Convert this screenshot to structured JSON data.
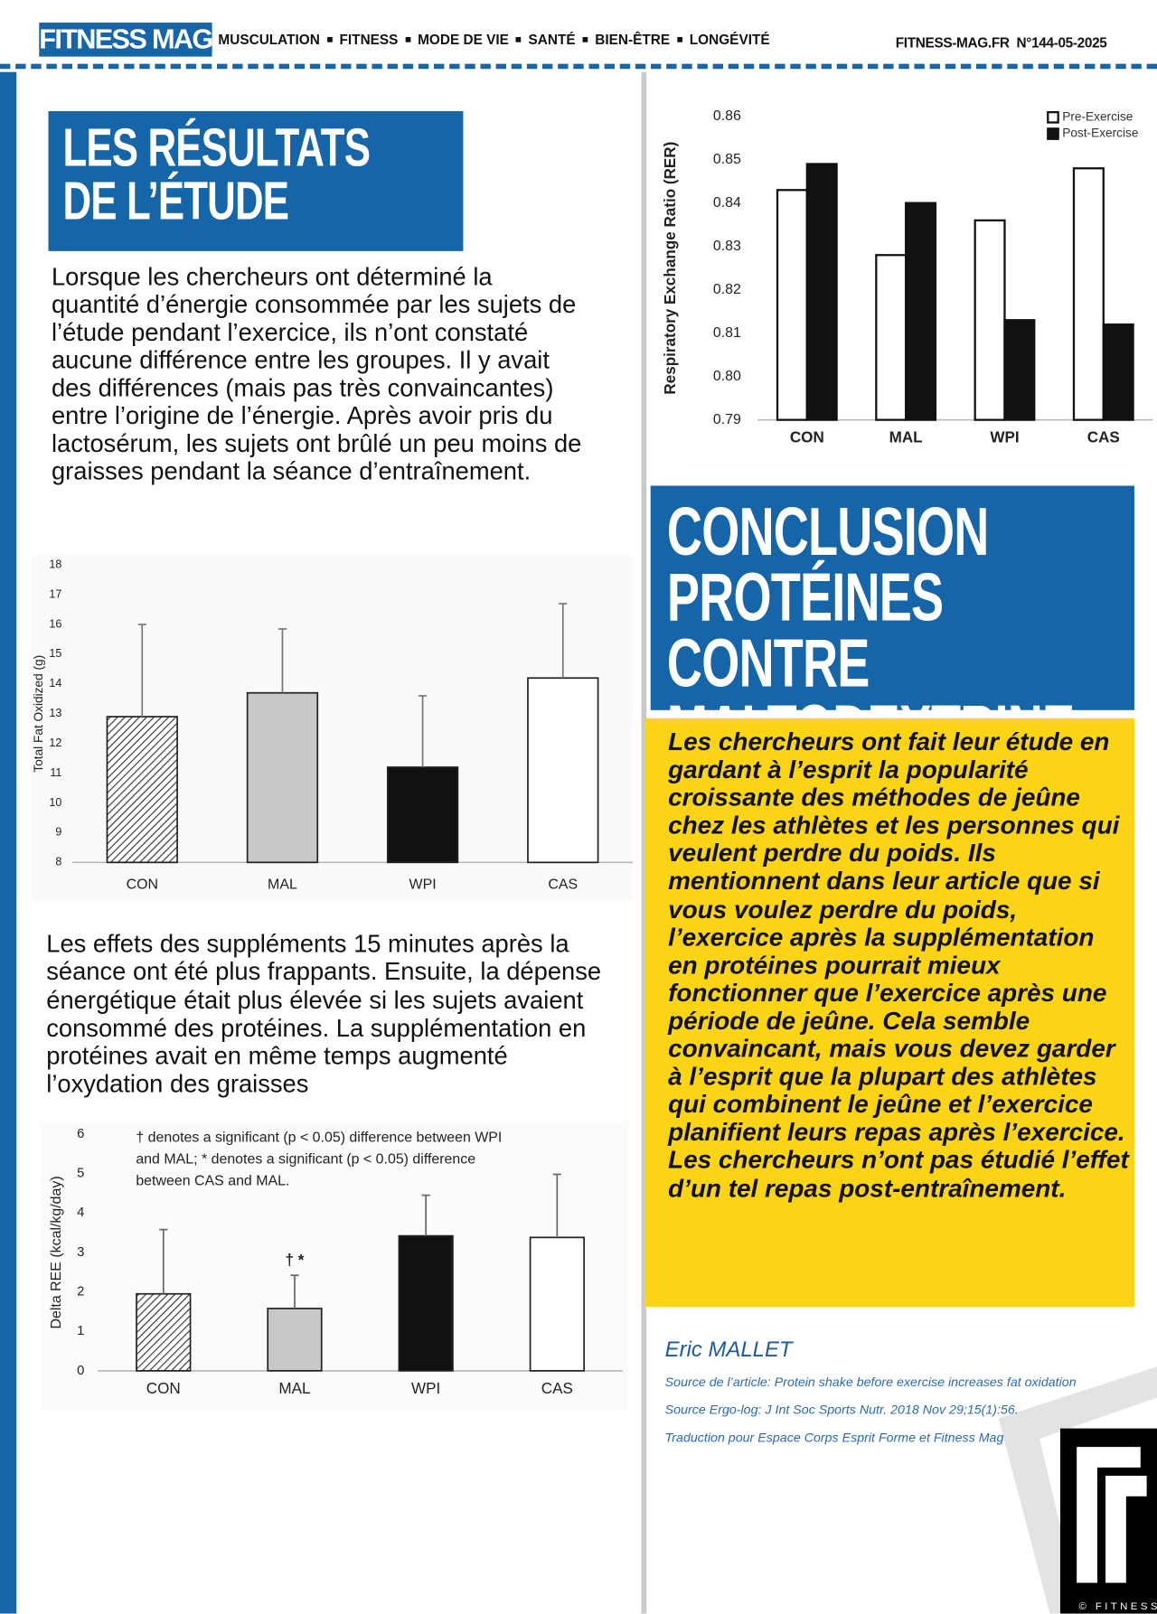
{
  "header": {
    "logo": "FITNESS MAG",
    "nav": [
      "MUSCULATION",
      "FITNESS",
      "MODE DE VIE",
      "SANTÉ",
      "BIEN-ÊTRE",
      "LONGÉVITÉ"
    ],
    "site": "FITNESS-MAG.FR",
    "issue": "N°144-05-2025"
  },
  "article": {
    "title": "LES RÉSULTATS DE L’ÉTUDE",
    "paragraphs": [
      "Lorsque les chercheurs ont déterminé la quantité d’énergie consommée par les sujets de l’étude pendant l’exercice, ils n’ont constaté aucune différence entre les groupes. Il y avait des différences (mais pas très convaincantes) entre l’origine de l’énergie. Après avoir pris du lactosérum, les sujets ont brûlé un peu moins de graisses pendant la séance d’entraînement.",
      "Les effets des suppléments 15 minutes après la séance ont été plus frappants. Ensuite, la dépense énergétique était plus élevée si les sujets avaient consommé des protéines. La supplémentation en protéines avait en même temps augmenté l’oxydation des graisses"
    ],
    "conclusion_title": "CONCLUSION PROTÉINES CONTRE MALTODEXTRINE",
    "conclusion_text": "Les chercheurs ont fait leur étude en gardant à l’esprit la popularité croissante des méthodes de jeûne chez les athlètes et les personnes qui veulent perdre du poids. Ils mentionnent dans leur article que si vous voulez perdre du poids, l’exercice après la supplémentation en protéines pourrait mieux fonctionner que l’exercice après une période de jeûne. Cela semble convaincant, mais vous devez garder à l’esprit que la plupart des athlètes qui combinent le jeûne et l’exercice planifient leurs repas après l’exercice. Les chercheurs n’ont pas étudié l’effet d’un tel repas post-entraînement.",
    "author": "Eric MALLET",
    "sources": [
      "Source de l’article: Protein shake before exercise increases fat oxidation",
      "Source Ergo-log: J Int Soc Sports Nutr. 2018 Nov 29;15(1):56.",
      "Traduction pour Espace Corps Esprit Forme et Fitness Mag"
    ]
  },
  "logo": {
    "caption": "© FITNESS"
  },
  "chart_data": [
    {
      "type": "bar",
      "y_label": "Total Fat Oxidized (g)",
      "categories": [
        "CON",
        "MAL",
        "WPI",
        "CAS"
      ],
      "values": [
        12.9,
        13.7,
        11.2,
        14.2
      ],
      "errors": [
        3.1,
        2.15,
        2.4,
        2.5
      ],
      "colors": [
        "#ffffff",
        "#c8c8c8",
        "#111111",
        "#ffffff"
      ],
      "hatch": [
        true,
        false,
        false,
        false
      ],
      "ylim": [
        8,
        18
      ],
      "yticks": [
        8,
        9,
        10,
        11,
        12,
        13,
        14,
        15,
        16,
        17,
        18
      ],
      "grid": false
    },
    {
      "type": "bar",
      "y_label": "Delta REE (kcal/kg/day)",
      "categories": [
        "CON",
        "MAL",
        "WPI",
        "CAS"
      ],
      "values": [
        1.95,
        1.58,
        3.42,
        3.38
      ],
      "errors": [
        1.63,
        0.84,
        1.03,
        1.6
      ],
      "colors": [
        "#ffffff",
        "#c8c8c8",
        "#111111",
        "#ffffff"
      ],
      "hatch": [
        true,
        false,
        false,
        false
      ],
      "bar_labels": [
        null,
        "† *",
        null,
        null
      ],
      "annotation_lines": [
        "† denotes a significant (p < 0.05) difference between WPI",
        "and MAL; * denotes a significant (p < 0.05) difference",
        "between CAS and MAL."
      ],
      "ylim": [
        0,
        6
      ],
      "yticks": [
        0,
        1,
        2,
        3,
        4,
        5,
        6
      ],
      "grid": false
    },
    {
      "type": "grouped-bar",
      "y_label": "Respiratory Exchange Ratio (RER)",
      "categories": [
        "CON",
        "MAL",
        "WPI",
        "CAS"
      ],
      "series": [
        {
          "name": "Pre-Exercise",
          "color": "#ffffff",
          "values": [
            0.843,
            0.828,
            0.836,
            0.848
          ]
        },
        {
          "name": "Post-Exercise",
          "color": "#111111",
          "values": [
            0.849,
            0.84,
            0.813,
            0.812
          ]
        }
      ],
      "ylim": [
        0.79,
        0.86
      ],
      "yticks": [
        0.79,
        {
          "value": 0.8,
          "label": "0.80"
        },
        0.81,
        0.82,
        0.83,
        0.84,
        0.85,
        0.86
      ],
      "grid": false,
      "legend": "upper-right"
    }
  ]
}
